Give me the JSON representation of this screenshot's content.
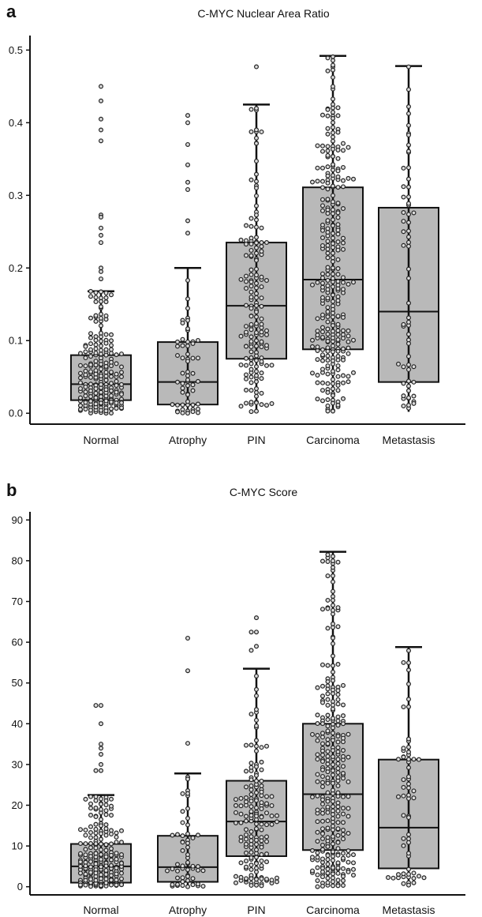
{
  "chart_data": [
    {
      "type": "box",
      "panel": "a",
      "title": "C-MYC Nuclear Area Ratio",
      "xlabel": "",
      "ylabel": "",
      "ylim": [
        -0.015,
        0.52
      ],
      "yticks": [
        0.0,
        0.1,
        0.2,
        0.3,
        0.4,
        0.5
      ],
      "ytick_labels": [
        "0.0",
        "0.1",
        "0.2",
        "0.3",
        "0.4",
        "0.5"
      ],
      "categories": [
        "Normal",
        "Atrophy",
        "PIN",
        "Carcinoma",
        "Metastasis"
      ],
      "boxes": [
        {
          "q1": 0.018,
          "median": 0.04,
          "q3": 0.08,
          "whisker_low": 0.0,
          "whisker_high": 0.168,
          "n_points": 230,
          "outliers": [
            0.45,
            0.43,
            0.405,
            0.39,
            0.375,
            0.273,
            0.27,
            0.255,
            0.245,
            0.235,
            0.2,
            0.195,
            0.185
          ]
        },
        {
          "q1": 0.012,
          "median": 0.043,
          "q3": 0.098,
          "whisker_low": 0.0,
          "whisker_high": 0.2,
          "n_points": 58,
          "outliers": [
            0.41,
            0.4,
            0.37,
            0.342,
            0.318,
            0.308,
            0.265,
            0.248
          ]
        },
        {
          "q1": 0.075,
          "median": 0.148,
          "q3": 0.235,
          "whisker_low": 0.002,
          "whisker_high": 0.425,
          "n_points": 160,
          "outliers": [
            0.477
          ]
        },
        {
          "q1": 0.088,
          "median": 0.184,
          "q3": 0.311,
          "whisker_low": 0.0,
          "whisker_high": 0.492,
          "n_points": 300,
          "outliers": []
        },
        {
          "q1": 0.043,
          "median": 0.14,
          "q3": 0.283,
          "whisker_low": 0.002,
          "whisker_high": 0.478,
          "n_points": 62,
          "outliers": []
        }
      ]
    },
    {
      "type": "box",
      "panel": "b",
      "title": "C-MYC Score",
      "xlabel": "",
      "ylabel": "",
      "ylim": [
        -2,
        92
      ],
      "yticks": [
        0,
        10,
        20,
        30,
        40,
        50,
        60,
        70,
        80,
        90
      ],
      "ytick_labels": [
        "0",
        "10",
        "20",
        "30",
        "40",
        "50",
        "60",
        "70",
        "80",
        "90"
      ],
      "categories": [
        "Normal",
        "Atrophy",
        "PIN",
        "Carcinoma",
        "Metastasis"
      ],
      "boxes": [
        {
          "q1": 1.0,
          "median": 5.0,
          "q3": 10.5,
          "whisker_low": 0.0,
          "whisker_high": 22.5,
          "n_points": 230,
          "outliers": [
            44.5,
            44.5,
            40,
            35,
            34,
            32.5,
            30,
            28.5,
            28.5
          ]
        },
        {
          "q1": 1.2,
          "median": 4.8,
          "q3": 12.5,
          "whisker_low": 0.0,
          "whisker_high": 27.8,
          "n_points": 58,
          "outliers": [
            61,
            53,
            35.2
          ]
        },
        {
          "q1": 7.5,
          "median": 16.0,
          "q3": 26.0,
          "whisker_low": 0.0,
          "whisker_high": 53.5,
          "n_points": 160,
          "outliers": [
            66,
            62.5,
            62.5,
            59,
            58
          ]
        },
        {
          "q1": 9.0,
          "median": 22.7,
          "q3": 40.0,
          "whisker_low": 0.0,
          "whisker_high": 82.2,
          "n_points": 300,
          "outliers": []
        },
        {
          "q1": 4.5,
          "median": 14.5,
          "q3": 31.2,
          "whisker_low": 0.0,
          "whisker_high": 58.8,
          "n_points": 62,
          "outliers": []
        }
      ]
    }
  ]
}
